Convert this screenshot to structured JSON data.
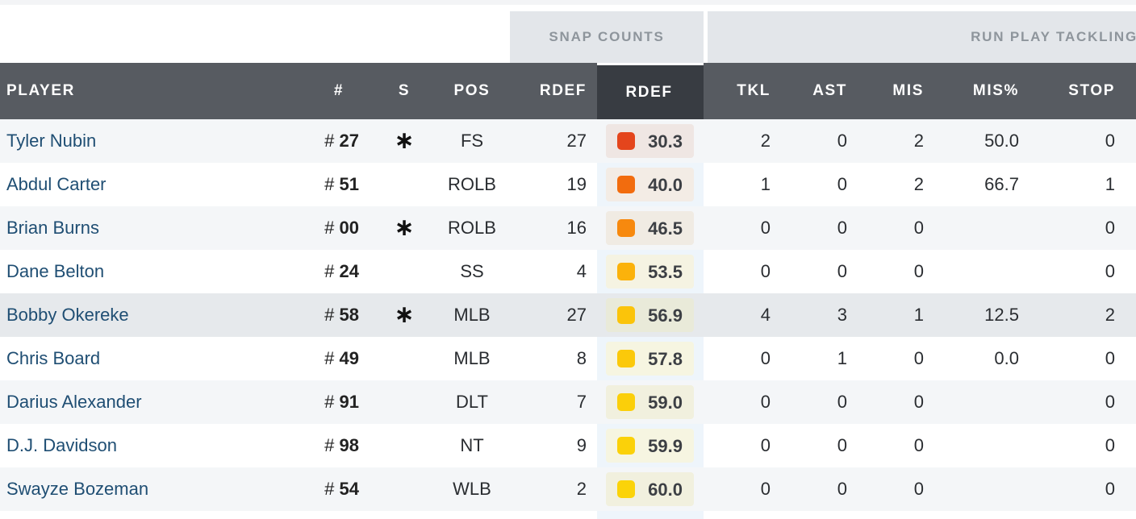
{
  "groups": {
    "snap_counts": "SNAP COUNTS",
    "run_play_tackling": "RUN PLAY TACKLING"
  },
  "columns": {
    "player": "PLAYER",
    "number": "#",
    "starter": "S",
    "pos": "POS",
    "rdef_snaps": "RDEF",
    "rdef_grade": "RDEF",
    "tkl": "TKL",
    "ast": "AST",
    "mis": "MIS",
    "mis_pct": "MIS%",
    "stop": "STOP"
  },
  "rows": [
    {
      "player": "Tyler Nubin",
      "hash": "#",
      "number": "27",
      "starter": "∗",
      "pos": "FS",
      "rdef_snaps": "27",
      "grade": "30.3",
      "grade_color": "#e4451c",
      "grade_bg": "#efe6e3",
      "tkl": "2",
      "ast": "0",
      "mis": "2",
      "mis_pct": "50.0",
      "stop": "0"
    },
    {
      "player": "Abdul Carter",
      "hash": "#",
      "number": "51",
      "starter": "",
      "pos": "ROLB",
      "rdef_snaps": "19",
      "grade": "40.0",
      "grade_color": "#f26c0e",
      "grade_bg": "#f3ece5",
      "tkl": "1",
      "ast": "0",
      "mis": "2",
      "mis_pct": "66.7",
      "stop": "1"
    },
    {
      "player": "Brian Burns",
      "hash": "#",
      "number": "00",
      "starter": "∗",
      "pos": "ROLB",
      "rdef_snaps": "16",
      "grade": "46.5",
      "grade_color": "#f7890e",
      "grade_bg": "#f0ebe3",
      "tkl": "0",
      "ast": "0",
      "mis": "0",
      "mis_pct": "",
      "stop": "0"
    },
    {
      "player": "Dane Belton",
      "hash": "#",
      "number": "24",
      "starter": "",
      "pos": "SS",
      "rdef_snaps": "4",
      "grade": "53.5",
      "grade_color": "#fbb20b",
      "grade_bg": "#f5f3e2",
      "tkl": "0",
      "ast": "0",
      "mis": "0",
      "mis_pct": "",
      "stop": "0"
    },
    {
      "player": "Bobby Okereke",
      "hash": "#",
      "number": "58",
      "starter": "∗",
      "pos": "MLB",
      "rdef_snaps": "27",
      "grade": "56.9",
      "grade_color": "#fbc40a",
      "grade_bg": "#e9ead9",
      "tkl": "4",
      "ast": "3",
      "mis": "1",
      "mis_pct": "12.5",
      "stop": "2"
    },
    {
      "player": "Chris Board",
      "hash": "#",
      "number": "49",
      "starter": "",
      "pos": "MLB",
      "rdef_snaps": "8",
      "grade": "57.8",
      "grade_color": "#fbc90a",
      "grade_bg": "#f6f5e1",
      "tkl": "0",
      "ast": "1",
      "mis": "0",
      "mis_pct": "0.0",
      "stop": "0"
    },
    {
      "player": "Darius Alexander",
      "hash": "#",
      "number": "91",
      "starter": "",
      "pos": "DLT",
      "rdef_snaps": "7",
      "grade": "59.0",
      "grade_color": "#fbcf09",
      "grade_bg": "#f1f0de",
      "tkl": "0",
      "ast": "0",
      "mis": "0",
      "mis_pct": "",
      "stop": "0"
    },
    {
      "player": "D.J. Davidson",
      "hash": "#",
      "number": "98",
      "starter": "",
      "pos": "NT",
      "rdef_snaps": "9",
      "grade": "59.9",
      "grade_color": "#fbd109",
      "grade_bg": "#f6f5e1",
      "tkl": "0",
      "ast": "0",
      "mis": "0",
      "mis_pct": "",
      "stop": "0"
    },
    {
      "player": "Swayze Bozeman",
      "hash": "#",
      "number": "54",
      "starter": "",
      "pos": "WLB",
      "rdef_snaps": "2",
      "grade": "60.0",
      "grade_color": "#fbd309",
      "grade_bg": "#f1f0de",
      "tkl": "0",
      "ast": "0",
      "mis": "0",
      "mis_pct": "",
      "stop": "0"
    }
  ]
}
